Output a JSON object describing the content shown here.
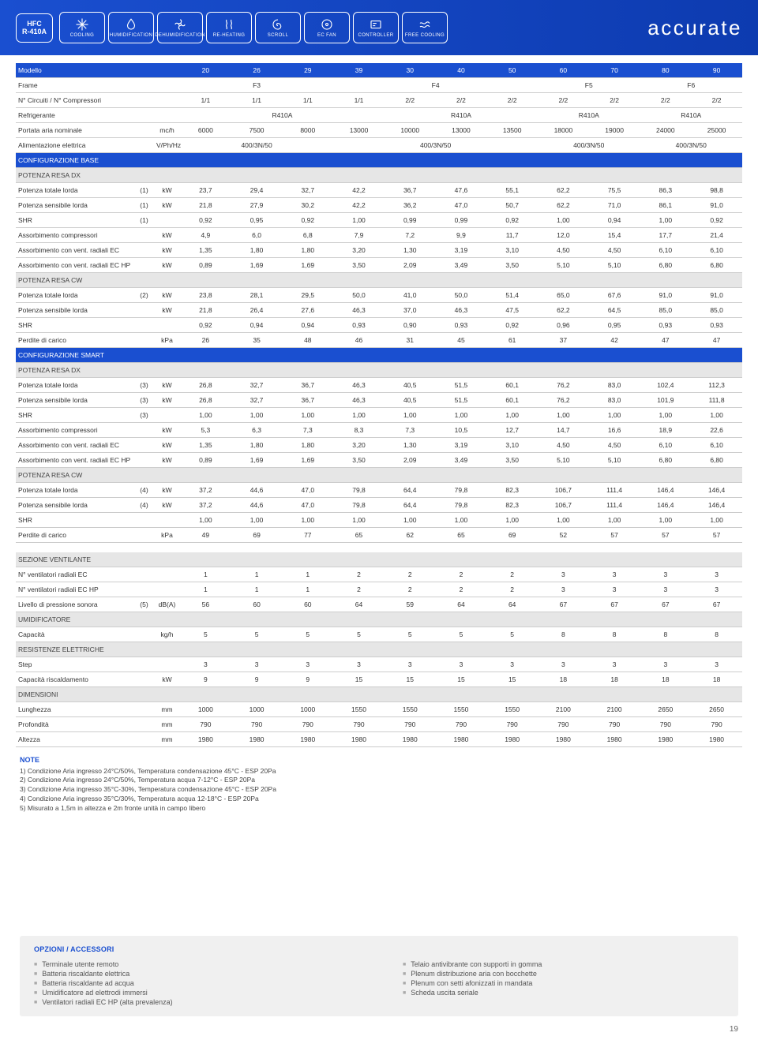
{
  "header": {
    "badge": {
      "line1": "HFC",
      "line2": "R-410A"
    },
    "chips": [
      {
        "icon": "snow",
        "label": "COOLING"
      },
      {
        "icon": "drop",
        "label": "HUMIDIFICATION"
      },
      {
        "icon": "fan",
        "label": "DEHUMIDIFICATION"
      },
      {
        "icon": "heat",
        "label": "RE-HEATING"
      },
      {
        "icon": "scroll",
        "label": "SCROLL"
      },
      {
        "icon": "ecfan",
        "label": "EC FAN"
      },
      {
        "icon": "ctrl",
        "label": "CONTROLLER"
      },
      {
        "icon": "free",
        "label": "FREE COOLING"
      }
    ],
    "brand": "accurate"
  },
  "colsets": [
    {
      "span": 3,
      "vals": [
        "F3"
      ]
    },
    {
      "span": 4,
      "vals": [
        "F4"
      ]
    },
    {
      "span": 2,
      "vals": [
        "F5"
      ]
    },
    {
      "span": 2,
      "vals": [
        "F6"
      ]
    }
  ],
  "model_cols": [
    "20",
    "26",
    "29",
    "39",
    "30",
    "40",
    "50",
    "60",
    "70",
    "80",
    "90"
  ],
  "rows": [
    {
      "type": "blue",
      "label": "Modello",
      "note": "",
      "unit": "",
      "vals": [
        "20",
        "26",
        "29",
        "39",
        "30",
        "40",
        "50",
        "60",
        "70",
        "80",
        "90"
      ]
    },
    {
      "label": "Frame",
      "note": "",
      "unit": "",
      "spans": [
        {
          "n": 3,
          "v": "F3"
        },
        {
          "n": 4,
          "v": "F4"
        },
        {
          "n": 2,
          "v": "F5"
        },
        {
          "n": 2,
          "v": "F6"
        }
      ]
    },
    {
      "label": "N° Circuiti / N° Compressori",
      "note": "",
      "unit": "",
      "vals": [
        "1/1",
        "1/1",
        "1/1",
        "1/1",
        "2/2",
        "2/2",
        "2/2",
        "2/2",
        "2/2",
        "2/2",
        "2/2"
      ]
    },
    {
      "label": "Refrigerante",
      "note": "",
      "unit": "",
      "spans": [
        {
          "n": 4,
          "v": "R410A"
        },
        {
          "n": 3,
          "v": "R410A"
        },
        {
          "n": 2,
          "v": "R410A"
        },
        {
          "n": 2,
          "v": "R410A"
        }
      ]
    },
    {
      "label": "Portata aria nominale",
      "note": "",
      "unit": "mc/h",
      "vals": [
        "6000",
        "7500",
        "8000",
        "13000",
        "10000",
        "13000",
        "13500",
        "18000",
        "19000",
        "24000",
        "25000"
      ]
    },
    {
      "label": "Alimentazione elettrica",
      "note": "",
      "unit": "V/Ph/Hz",
      "spans": [
        {
          "n": 3,
          "v": "400/3N/50"
        },
        {
          "n": 4,
          "v": "400/3N/50"
        },
        {
          "n": 2,
          "v": "400/3N/50"
        },
        {
          "n": 2,
          "v": "400/3N/50"
        }
      ]
    },
    {
      "type": "blue",
      "label": "CONFIGURAZIONE BASE",
      "full": true
    },
    {
      "type": "sec",
      "label": "POTENZA RESA DX",
      "full": true
    },
    {
      "label": "Potenza totale lorda",
      "note": "(1)",
      "unit": "kW",
      "vals": [
        "23,7",
        "29,4",
        "32,7",
        "42,2",
        "36,7",
        "47,6",
        "55,1",
        "62,2",
        "75,5",
        "86,3",
        "98,8"
      ]
    },
    {
      "label": "Potenza sensibile lorda",
      "note": "(1)",
      "unit": "kW",
      "vals": [
        "21,8",
        "27,9",
        "30,2",
        "42,2",
        "36,2",
        "47,0",
        "50,7",
        "62,2",
        "71,0",
        "86,1",
        "91,0"
      ]
    },
    {
      "label": "SHR",
      "note": "(1)",
      "unit": "",
      "vals": [
        "0,92",
        "0,95",
        "0,92",
        "1,00",
        "0,99",
        "0,99",
        "0,92",
        "1,00",
        "0,94",
        "1,00",
        "0,92"
      ]
    },
    {
      "label": "Assorbimento compressori",
      "note": "",
      "unit": "kW",
      "vals": [
        "4,9",
        "6,0",
        "6,8",
        "7,9",
        "7,2",
        "9,9",
        "11,7",
        "12,0",
        "15,4",
        "17,7",
        "21,4"
      ]
    },
    {
      "label": "Assorbimento con vent. radiali EC",
      "note": "",
      "unit": "kW",
      "vals": [
        "1,35",
        "1,80",
        "1,80",
        "3,20",
        "1,30",
        "3,19",
        "3,10",
        "4,50",
        "4,50",
        "6,10",
        "6,10"
      ]
    },
    {
      "label": "Assorbimento con vent. radiali EC HP",
      "note": "",
      "unit": "kW",
      "vals": [
        "0,89",
        "1,69",
        "1,69",
        "3,50",
        "2,09",
        "3,49",
        "3,50",
        "5,10",
        "5,10",
        "6,80",
        "6,80"
      ]
    },
    {
      "type": "sec",
      "label": "POTENZA RESA CW",
      "full": true
    },
    {
      "label": "Potenza totale lorda",
      "note": "(2)",
      "unit": "kW",
      "vals": [
        "23,8",
        "28,1",
        "29,5",
        "50,0",
        "41,0",
        "50,0",
        "51,4",
        "65,0",
        "67,6",
        "91,0",
        "91,0"
      ]
    },
    {
      "label": "Potenza sensibile lorda",
      "note": "",
      "unit": "kW",
      "vals": [
        "21,8",
        "26,4",
        "27,6",
        "46,3",
        "37,0",
        "46,3",
        "47,5",
        "62,2",
        "64,5",
        "85,0",
        "85,0"
      ]
    },
    {
      "label": "SHR",
      "note": "",
      "unit": "",
      "vals": [
        "0,92",
        "0,94",
        "0,94",
        "0,93",
        "0,90",
        "0,93",
        "0,92",
        "0,96",
        "0,95",
        "0,93",
        "0,93"
      ]
    },
    {
      "label": "Perdite di carico",
      "note": "",
      "unit": "kPa",
      "vals": [
        "26",
        "35",
        "48",
        "46",
        "31",
        "45",
        "61",
        "37",
        "42",
        "47",
        "47"
      ]
    },
    {
      "type": "blue",
      "label": "CONFIGURAZIONE SMART",
      "full": true
    },
    {
      "type": "sec",
      "label": "POTENZA RESA DX",
      "full": true
    },
    {
      "label": "Potenza totale lorda",
      "note": "(3)",
      "unit": "kW",
      "vals": [
        "26,8",
        "32,7",
        "36,7",
        "46,3",
        "40,5",
        "51,5",
        "60,1",
        "76,2",
        "83,0",
        "102,4",
        "112,3"
      ]
    },
    {
      "label": "Potenza sensibile lorda",
      "note": "(3)",
      "unit": "kW",
      "vals": [
        "26,8",
        "32,7",
        "36,7",
        "46,3",
        "40,5",
        "51,5",
        "60,1",
        "76,2",
        "83,0",
        "101,9",
        "111,8"
      ]
    },
    {
      "label": "SHR",
      "note": "(3)",
      "unit": "",
      "vals": [
        "1,00",
        "1,00",
        "1,00",
        "1,00",
        "1,00",
        "1,00",
        "1,00",
        "1,00",
        "1,00",
        "1,00",
        "1,00"
      ]
    },
    {
      "label": "Assorbimento compressori",
      "note": "",
      "unit": "kW",
      "vals": [
        "5,3",
        "6,3",
        "7,3",
        "8,3",
        "7,3",
        "10,5",
        "12,7",
        "14,7",
        "16,6",
        "18,9",
        "22,6"
      ]
    },
    {
      "label": "Assorbimento con vent. radiali EC",
      "note": "",
      "unit": "kW",
      "vals": [
        "1,35",
        "1,80",
        "1,80",
        "3,20",
        "1,30",
        "3,19",
        "3,10",
        "4,50",
        "4,50",
        "6,10",
        "6,10"
      ]
    },
    {
      "label": "Assorbimento con vent. radiali EC HP",
      "note": "",
      "unit": "kW",
      "vals": [
        "0,89",
        "1,69",
        "1,69",
        "3,50",
        "2,09",
        "3,49",
        "3,50",
        "5,10",
        "5,10",
        "6,80",
        "6,80"
      ]
    },
    {
      "type": "sec",
      "label": "POTENZA RESA CW",
      "full": true
    },
    {
      "label": "Potenza totale lorda",
      "note": "(4)",
      "unit": "kW",
      "vals": [
        "37,2",
        "44,6",
        "47,0",
        "79,8",
        "64,4",
        "79,8",
        "82,3",
        "106,7",
        "111,4",
        "146,4",
        "146,4"
      ]
    },
    {
      "label": "Potenza sensibile lorda",
      "note": "(4)",
      "unit": "kW",
      "vals": [
        "37,2",
        "44,6",
        "47,0",
        "79,8",
        "64,4",
        "79,8",
        "82,3",
        "106,7",
        "111,4",
        "146,4",
        "146,4"
      ]
    },
    {
      "label": "SHR",
      "note": "",
      "unit": "",
      "vals": [
        "1,00",
        "1,00",
        "1,00",
        "1,00",
        "1,00",
        "1,00",
        "1,00",
        "1,00",
        "1,00",
        "1,00",
        "1,00"
      ]
    },
    {
      "label": "Perdite di carico",
      "note": "",
      "unit": "kPa",
      "vals": [
        "49",
        "69",
        "77",
        "65",
        "62",
        "65",
        "69",
        "52",
        "57",
        "57",
        "57"
      ]
    },
    {
      "type": "gap"
    },
    {
      "type": "sec",
      "label": "SEZIONE VENTILANTE",
      "full": true
    },
    {
      "label": "N° ventilatori radiali EC",
      "note": "",
      "unit": "",
      "vals": [
        "1",
        "1",
        "1",
        "2",
        "2",
        "2",
        "2",
        "3",
        "3",
        "3",
        "3"
      ]
    },
    {
      "label": "N° ventilatori radiali EC HP",
      "note": "",
      "unit": "",
      "vals": [
        "1",
        "1",
        "1",
        "2",
        "2",
        "2",
        "2",
        "3",
        "3",
        "3",
        "3"
      ]
    },
    {
      "label": "Livello di pressione sonora",
      "note": "(5)",
      "unit": "dB(A)",
      "vals": [
        "56",
        "60",
        "60",
        "64",
        "59",
        "64",
        "64",
        "67",
        "67",
        "67",
        "67"
      ]
    },
    {
      "type": "sec",
      "label": "UMIDIFICATORE",
      "full": true
    },
    {
      "label": "Capacità",
      "note": "",
      "unit": "kg/h",
      "vals": [
        "5",
        "5",
        "5",
        "5",
        "5",
        "5",
        "5",
        "8",
        "8",
        "8",
        "8"
      ]
    },
    {
      "type": "sec",
      "label": "RESISTENZE ELETTRICHE",
      "full": true
    },
    {
      "label": "Step",
      "note": "",
      "unit": "",
      "vals": [
        "3",
        "3",
        "3",
        "3",
        "3",
        "3",
        "3",
        "3",
        "3",
        "3",
        "3"
      ]
    },
    {
      "label": "Capacità riscaldamento",
      "note": "",
      "unit": "kW",
      "vals": [
        "9",
        "9",
        "9",
        "15",
        "15",
        "15",
        "15",
        "18",
        "18",
        "18",
        "18"
      ]
    },
    {
      "type": "sec",
      "label": "DIMENSIONI",
      "full": true
    },
    {
      "label": "Lunghezza",
      "note": "",
      "unit": "mm",
      "vals": [
        "1000",
        "1000",
        "1000",
        "1550",
        "1550",
        "1550",
        "1550",
        "2100",
        "2100",
        "2650",
        "2650"
      ]
    },
    {
      "label": "Profondità",
      "note": "",
      "unit": "mm",
      "vals": [
        "790",
        "790",
        "790",
        "790",
        "790",
        "790",
        "790",
        "790",
        "790",
        "790",
        "790"
      ]
    },
    {
      "label": "Altezza",
      "note": "",
      "unit": "mm",
      "vals": [
        "1980",
        "1980",
        "1980",
        "1980",
        "1980",
        "1980",
        "1980",
        "1980",
        "1980",
        "1980",
        "1980"
      ]
    }
  ],
  "notes": {
    "title": "NOTE",
    "lines": [
      "1) Condizione Aria ingresso 24°C/50%, Temperatura condensazione 45°C - ESP 20Pa",
      "2) Condizione Aria ingresso 24°C/50%, Temperatura acqua 7-12°C - ESP 20Pa",
      "3) Condizione Aria ingresso 35°C-30%, Temperatura condensazione 45°C - ESP 20Pa",
      "4) Condizione Aria ingresso 35°C/30%, Temperatura acqua 12-18°C - ESP 20Pa",
      "5) Misurato a 1,5m in altezza e 2m fronte unità in campo libero"
    ]
  },
  "options": {
    "title": "OPZIONI / ACCESSORI",
    "left": [
      "Terminale utente remoto",
      "Batteria riscaldante elettrica",
      "Batteria riscaldante ad acqua",
      "Umidificatore ad elettrodi immersi",
      "Ventilatori radiali EC HP (alta prevalenza)"
    ],
    "right": [
      "Telaio antivibrante con supporti in gomma",
      "Plenum distribuzione aria con bocchette",
      "Plenum con setti afonizzati in mandata",
      "Scheda uscita seriale"
    ]
  },
  "page_number": "19"
}
